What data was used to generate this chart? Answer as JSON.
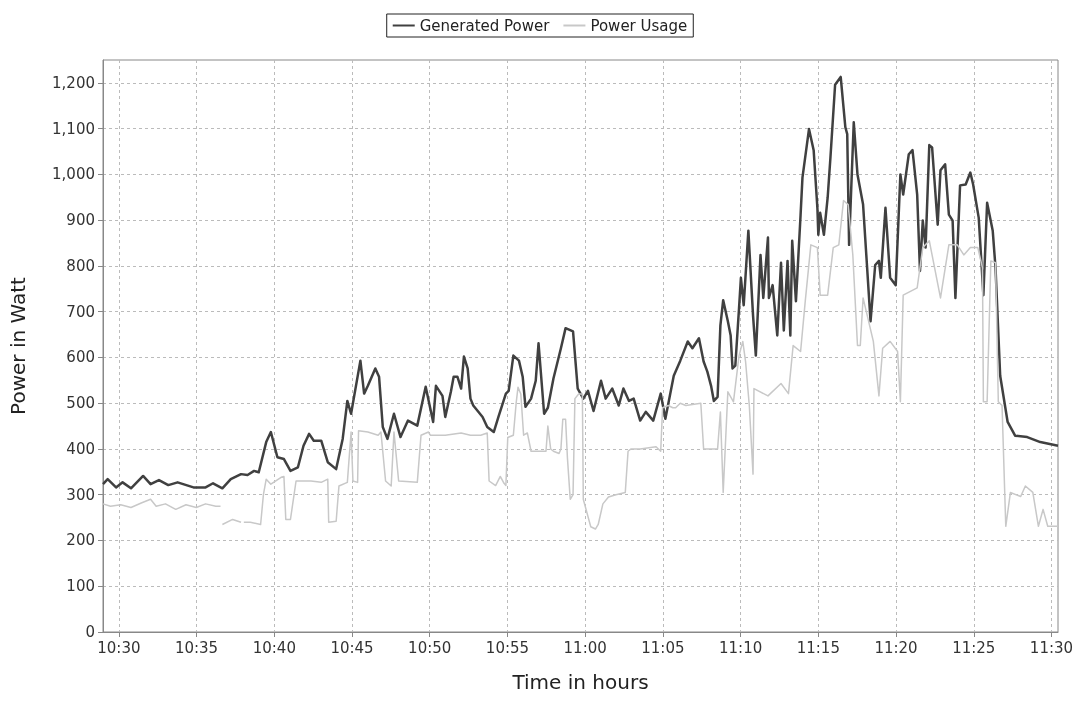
{
  "chart_data": {
    "type": "line",
    "xlabel": "Time in hours",
    "ylabel": "Power in Watt",
    "xlim": [
      10.483,
      11.507
    ],
    "ylim": [
      0,
      1250
    ],
    "xticks": [
      {
        "value": 10.5,
        "label": "10:30"
      },
      {
        "value": 10.5833,
        "label": "10:35"
      },
      {
        "value": 10.6667,
        "label": "10:40"
      },
      {
        "value": 10.75,
        "label": "10:45"
      },
      {
        "value": 10.8333,
        "label": "10:50"
      },
      {
        "value": 10.9167,
        "label": "10:55"
      },
      {
        "value": 11,
        "label": "11:00"
      },
      {
        "value": 11.0833,
        "label": "11:05"
      },
      {
        "value": 11.1667,
        "label": "11:10"
      },
      {
        "value": 11.25,
        "label": "11:15"
      },
      {
        "value": 11.3333,
        "label": "11:20"
      },
      {
        "value": 11.4167,
        "label": "11:25"
      },
      {
        "value": 11.5,
        "label": "11:30"
      }
    ],
    "yticks": [
      0,
      100,
      200,
      300,
      400,
      500,
      600,
      700,
      800,
      900,
      {
        "value": 1000,
        "label": "1,000"
      },
      {
        "value": 1100,
        "label": "1,100"
      },
      {
        "value": 1200,
        "label": "1,200"
      }
    ],
    "grid": true,
    "legend": "top",
    "marker": "none",
    "line_style": "solid",
    "series": [
      {
        "name": "Generated Power",
        "color": "#404040",
        "x": [
          10.483,
          10.488,
          10.497,
          10.504,
          10.513,
          10.526,
          10.534,
          10.543,
          10.553,
          10.563,
          10.58,
          10.593,
          10.601,
          10.611,
          10.62,
          10.631,
          10.638,
          10.645,
          10.65,
          10.658,
          10.663,
          10.67,
          10.677,
          10.684,
          10.692,
          10.698,
          10.704,
          10.709,
          10.717,
          10.724,
          10.733,
          10.74,
          10.745,
          10.749,
          10.759,
          10.763,
          10.767,
          10.775,
          10.779,
          10.783,
          10.788,
          10.795,
          10.802,
          10.81,
          10.82,
          10.829,
          10.837,
          10.84,
          10.847,
          10.85,
          10.856,
          10.859,
          10.863,
          10.867,
          10.87,
          10.874,
          10.877,
          10.88,
          10.89,
          10.895,
          10.902,
          10.907,
          10.915,
          10.918,
          10.923,
          10.929,
          10.933,
          10.936,
          10.942,
          10.947,
          10.95,
          10.956,
          10.96,
          10.966,
          10.974,
          10.979,
          10.987,
          10.992,
          10.998,
          11.003,
          11.009,
          11.017,
          11.022,
          11.029,
          11.036,
          11.041,
          11.047,
          11.052,
          11.059,
          11.065,
          11.073,
          11.081,
          11.086,
          11.095,
          11.102,
          11.11,
          11.115,
          11.122,
          11.127,
          11.131,
          11.135,
          11.138,
          11.142,
          11.145,
          11.148,
          11.153,
          11.156,
          11.158,
          11.161,
          11.165,
          11.167,
          11.17,
          11.175,
          11.18,
          11.183,
          11.188,
          11.191,
          11.196,
          11.197,
          11.201,
          11.206,
          11.21,
          11.213,
          11.217,
          11.22,
          11.222,
          11.226,
          11.231,
          11.233,
          11.24,
          11.245,
          11.249,
          11.25,
          11.252,
          11.256,
          11.26,
          11.263,
          11.268,
          11.274,
          11.279,
          11.281,
          11.283,
          11.288,
          11.292,
          11.298,
          11.306,
          11.311,
          11.315,
          11.317,
          11.322,
          11.327,
          11.333,
          11.338,
          11.341,
          11.347,
          11.351,
          11.356,
          11.359,
          11.362,
          11.365,
          11.369,
          11.372,
          11.378,
          11.381,
          11.386,
          11.39,
          11.394,
          11.397,
          11.402,
          11.408,
          11.413,
          11.416,
          11.422,
          11.427,
          11.431,
          11.437,
          11.44,
          11.445,
          11.453,
          11.461,
          11.474,
          11.488,
          11.507
        ],
        "values": [
          323,
          334,
          316,
          327,
          314,
          341,
          323,
          332,
          321,
          327,
          316,
          316,
          325,
          314,
          334,
          345,
          343,
          352,
          349,
          415,
          437,
          382,
          378,
          352,
          360,
          407,
          433,
          418,
          418,
          371,
          356,
          422,
          505,
          477,
          593,
          521,
          538,
          576,
          558,
          448,
          422,
          477,
          426,
          462,
          451,
          536,
          459,
          538,
          516,
          470,
          525,
          558,
          558,
          532,
          602,
          576,
          510,
          495,
          470,
          448,
          437,
          470,
          521,
          527,
          604,
          593,
          558,
          492,
          510,
          549,
          631,
          477,
          490,
          554,
          620,
          664,
          657,
          532,
          510,
          527,
          483,
          549,
          510,
          532,
          495,
          532,
          505,
          510,
          462,
          481,
          462,
          521,
          466,
          560,
          593,
          635,
          620,
          642,
          591,
          569,
          538,
          505,
          514,
          670,
          725,
          679,
          648,
          576,
          582,
          708,
          774,
          714,
          877,
          692,
          604,
          824,
          730,
          862,
          730,
          758,
          648,
          807,
          659,
          811,
          648,
          855,
          723,
          912,
          993,
          1099,
          1053,
          927,
          868,
          916,
          868,
          949,
          1037,
          1196,
          1213,
          1103,
          1088,
          846,
          1114,
          1000,
          934,
          679,
          802,
          811,
          774,
          927,
          774,
          758,
          1000,
          956,
          1044,
          1053,
          956,
          789,
          899,
          840,
          1064,
          1059,
          890,
          1009,
          1022,
          912,
          899,
          730,
          976,
          978,
          1004,
          978,
          905,
          736,
          938,
          877,
          796,
          560,
          459,
          429,
          426,
          415,
          407
        ]
      },
      {
        "name": "Power Usage",
        "color": "#c8c8c8",
        "x": [
          10.483,
          10.491,
          10.502,
          10.513,
          10.524,
          10.534,
          10.54,
          10.55,
          10.561,
          10.572,
          10.583,
          10.593,
          10.604,
          10.609,
          10.61,
          10.611,
          10.622,
          10.631,
          10.632,
          10.634,
          10.641,
          10.652,
          10.655,
          10.658,
          10.663,
          10.674,
          10.677,
          10.679,
          10.684,
          10.69,
          10.706,
          10.717,
          10.724,
          10.725,
          10.733,
          10.736,
          10.745,
          10.749,
          10.751,
          10.756,
          10.757,
          10.767,
          10.778,
          10.781,
          10.786,
          10.792,
          10.795,
          10.8,
          10.82,
          10.824,
          10.832,
          10.834,
          10.85,
          10.867,
          10.877,
          10.888,
          10.895,
          10.897,
          10.904,
          10.909,
          10.913,
          10.915,
          10.917,
          10.923,
          10.926,
          10.928,
          10.931,
          10.934,
          10.938,
          10.942,
          10.952,
          10.958,
          10.96,
          10.963,
          10.966,
          10.972,
          10.974,
          10.976,
          10.979,
          10.981,
          10.984,
          10.987,
          10.989,
          10.993,
          10.997,
          10.998,
          11.006,
          11.011,
          11.014,
          11.019,
          11.025,
          11.033,
          11.043,
          11.046,
          11.049,
          11.059,
          11.076,
          11.081,
          11.083,
          11.089,
          11.094,
          11.097,
          11.102,
          11.108,
          11.124,
          11.127,
          11.142,
          11.145,
          11.148,
          11.153,
          11.159,
          11.165,
          11.169,
          11.172,
          11.176,
          11.18,
          11.181,
          11.196,
          11.21,
          11.218,
          11.223,
          11.231,
          11.236,
          11.242,
          11.249,
          11.252,
          11.26,
          11.266,
          11.272,
          11.277,
          11.282,
          11.287,
          11.292,
          11.295,
          11.298,
          11.309,
          11.315,
          11.319,
          11.327,
          11.335,
          11.338,
          11.341,
          11.356,
          11.362,
          11.369,
          11.381,
          11.39,
          11.399,
          11.406,
          11.413,
          11.421,
          11.426,
          11.427,
          11.431,
          11.435,
          11.44,
          11.443,
          11.447,
          11.451,
          11.456,
          11.467,
          11.472,
          11.48,
          11.486,
          11.491,
          11.496,
          11.507
        ],
        "values": [
          280,
          275,
          278,
          272,
          282,
          290,
          275,
          280,
          268,
          278,
          272,
          280,
          275,
          275,
          null,
          235,
          246,
          240,
          null,
          240,
          240,
          235,
          300,
          334,
          323,
          338,
          340,
          246,
          246,
          330,
          330,
          327,
          334,
          240,
          242,
          319,
          327,
          437,
          330,
          327,
          440,
          437,
          430,
          437,
          330,
          319,
          437,
          330,
          327,
          430,
          437,
          430,
          430,
          435,
          430,
          430,
          435,
          330,
          320,
          340,
          325,
          320,
          425,
          430,
          500,
          535,
          520,
          430,
          435,
          395,
          395,
          395,
          450,
          400,
          395,
          390,
          400,
          465,
          465,
          380,
          290,
          300,
          510,
          520,
          520,
          290,
          230,
          225,
          235,
          280,
          295,
          300,
          305,
          395,
          400,
          400,
          405,
          395,
          490,
          495,
          490,
          490,
          500,
          495,
          500,
          400,
          400,
          481,
          305,
          525,
          503,
          604,
          635,
          591,
          495,
          345,
          532,
          516,
          543,
          521,
          626,
          613,
          723,
          846,
          840,
          736,
          736,
          840,
          846,
          943,
          934,
          824,
          626,
          626,
          730,
          635,
          516,
          620,
          635,
          613,
          503,
          736,
          752,
          840,
          855,
          730,
          846,
          846,
          824,
          840,
          840,
          796,
          503,
          503,
          811,
          807,
          503,
          495,
          231,
          305,
          296,
          319,
          305,
          231,
          268,
          231,
          231
        ]
      }
    ]
  }
}
